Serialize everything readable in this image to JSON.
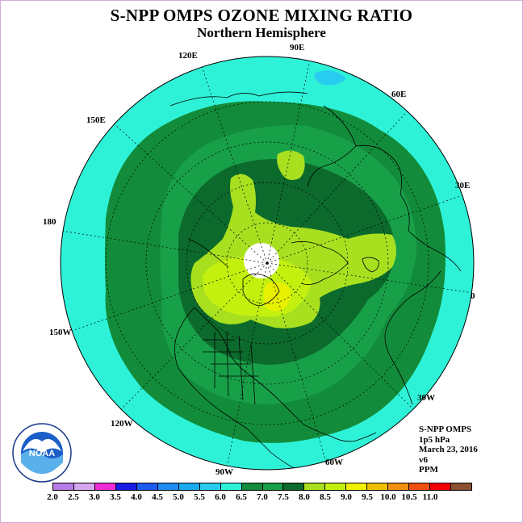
{
  "title": "S-NPP OMPS OZONE MIXING RATIO",
  "subtitle": "Northern Hemisphere",
  "info": {
    "instrument": "S-NPP OMPS",
    "level": "1p5 hPa",
    "date": "March 23, 2016",
    "version": "v6",
    "units": "PPM"
  },
  "lon_labels": {
    "e90": "90E",
    "e60": "60E",
    "e30": "30E",
    "zero": "0",
    "w30": "30W",
    "w60": "60W",
    "w90": "90W",
    "w120": "120W",
    "w150": "150W",
    "d180": "180",
    "e150": "150E",
    "e120": "120E"
  },
  "logo": {
    "name": "NOAA"
  },
  "colorbar": {
    "ticks": [
      "2.0",
      "2.5",
      "3.0",
      "3.5",
      "4.0",
      "4.5",
      "5.0",
      "5.5",
      "6.0",
      "6.5",
      "7.0",
      "7.5",
      "8.0",
      "8.5",
      "9.0",
      "9.5",
      "10.0",
      "10.5",
      "11.0"
    ],
    "colors": [
      "#b87ce8",
      "#d7a6f0",
      "#ef2bd8",
      "#1a1ae6",
      "#1e5cf0",
      "#1e8cf0",
      "#1aaaf0",
      "#28ccf0",
      "#2ef2d8",
      "#128c3a",
      "#18a048",
      "#0c6a2c",
      "#a8e020",
      "#c4f010",
      "#f0f000",
      "#f0c000",
      "#f09010",
      "#f05010",
      "#f00000",
      "#8a5030"
    ]
  },
  "fill_colors": {
    "range_5_5_6": "#2ef2d8",
    "range_6_6_5": "#128c3a",
    "range_6_5_7": "#18a048",
    "range_7_7_5": "#0c6a2c",
    "range_7_5_8": "#a8e020",
    "range_8_8_5": "#c4f010",
    "range_4_5_5": "#28ccf0"
  }
}
